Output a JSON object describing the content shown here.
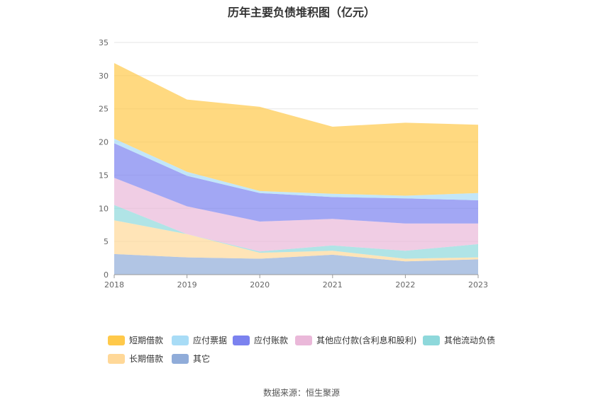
{
  "chart_data": {
    "type": "area",
    "stacked": true,
    "title": "历年主要负债堆积图（亿元）",
    "source": "数据来源：恒生聚源",
    "x": [
      "2018",
      "2019",
      "2020",
      "2021",
      "2022",
      "2023"
    ],
    "ylim": [
      0,
      35
    ],
    "yticks": [
      0,
      5,
      10,
      15,
      20,
      25,
      30,
      35
    ],
    "grid": true,
    "legend_position": "bottom",
    "series": [
      {
        "name": "其它",
        "color": "#90acd9",
        "values": [
          3.1,
          2.6,
          2.4,
          3.0,
          2.0,
          2.3
        ]
      },
      {
        "name": "长期借款",
        "color": "#ffd898",
        "values": [
          5.1,
          3.5,
          0.9,
          0.6,
          0.4,
          0.3
        ]
      },
      {
        "name": "其他流动负债",
        "color": "#8ed8db",
        "values": [
          2.3,
          0.0,
          0.2,
          0.8,
          1.2,
          2.0
        ]
      },
      {
        "name": "其他应付款(含利息和股利)",
        "color": "#eab8d9",
        "values": [
          4.1,
          4.2,
          4.5,
          4.0,
          4.1,
          3.1
        ]
      },
      {
        "name": "应付账款",
        "color": "#7b82ef",
        "values": [
          5.2,
          4.6,
          4.3,
          3.3,
          3.8,
          3.5
        ]
      },
      {
        "name": "应付票据",
        "color": "#a8dcf6",
        "values": [
          0.7,
          0.6,
          0.3,
          0.5,
          0.4,
          1.1
        ]
      },
      {
        "name": "短期借款",
        "color": "#ffc94a",
        "values": [
          11.4,
          10.9,
          12.7,
          10.1,
          11.0,
          10.3
        ]
      }
    ],
    "legend_order": [
      "短期借款",
      "应付票据",
      "应付账款",
      "其他应付款(含利息和股利)",
      "其他流动负债",
      "长期借款",
      "其它"
    ]
  }
}
